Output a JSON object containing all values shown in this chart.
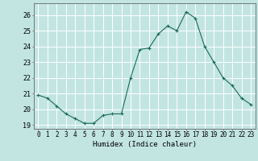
{
  "x": [
    0,
    1,
    2,
    3,
    4,
    5,
    6,
    7,
    8,
    9,
    10,
    11,
    12,
    13,
    14,
    15,
    16,
    17,
    18,
    19,
    20,
    21,
    22,
    23
  ],
  "y": [
    20.9,
    20.7,
    20.2,
    19.7,
    19.4,
    19.1,
    19.1,
    19.6,
    19.7,
    19.7,
    22.0,
    23.8,
    23.9,
    24.8,
    25.3,
    25.0,
    26.2,
    25.8,
    24.0,
    23.0,
    22.0,
    21.5,
    20.7,
    20.3
  ],
  "line_color": "#1a6b5a",
  "marker": "+",
  "bg_color": "#c2e5e2",
  "grid_color": "#ffffff",
  "xlabel": "Humidex (Indice chaleur)",
  "ylim": [
    18.75,
    26.75
  ],
  "xlim": [
    -0.5,
    23.5
  ],
  "yticks": [
    19,
    20,
    21,
    22,
    23,
    24,
    25,
    26
  ],
  "xticks": [
    0,
    1,
    2,
    3,
    4,
    5,
    6,
    7,
    8,
    9,
    10,
    11,
    12,
    13,
    14,
    15,
    16,
    17,
    18,
    19,
    20,
    21,
    22,
    23
  ],
  "xlabel_fontsize": 6.5,
  "tick_fontsize": 5.5
}
